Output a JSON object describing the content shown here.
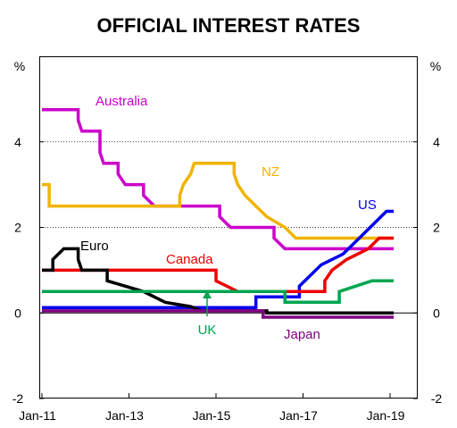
{
  "chart_data": {
    "type": "line",
    "title": "OFFICIAL INTEREST RATES",
    "ylabel_left": "%",
    "ylabel_right": "%",
    "ylim": [
      -2,
      6
    ],
    "xlim": [
      "2011-01",
      "2019-03"
    ],
    "y_ticks": [
      -2,
      0,
      2,
      4
    ],
    "y_tick_labels": [
      "-2",
      "0",
      "2",
      "4"
    ],
    "x_ticks": [
      "2011-01",
      "2013-01",
      "2015-01",
      "2017-01",
      "2019-01"
    ],
    "x_tick_labels": [
      "Jan-11",
      "Jan-13",
      "Jan-15",
      "Jan-17",
      "Jan-19"
    ],
    "gridlines": [
      2,
      4
    ],
    "grid": "dotted horizontal at 2 and 4",
    "series": [
      {
        "name": "Australia",
        "color": "#cc00cc",
        "points": [
          [
            "2011-01",
            4.75
          ],
          [
            "2011-11",
            4.75
          ],
          [
            "2011-11",
            4.5
          ],
          [
            "2011-12",
            4.25
          ],
          [
            "2012-05",
            4.25
          ],
          [
            "2012-05",
            3.75
          ],
          [
            "2012-06",
            3.5
          ],
          [
            "2012-10",
            3.5
          ],
          [
            "2012-10",
            3.25
          ],
          [
            "2012-12",
            3.0
          ],
          [
            "2013-05",
            3.0
          ],
          [
            "2013-05",
            2.75
          ],
          [
            "2013-08",
            2.5
          ],
          [
            "2015-02",
            2.5
          ],
          [
            "2015-02",
            2.25
          ],
          [
            "2015-05",
            2.0
          ],
          [
            "2016-05",
            2.0
          ],
          [
            "2016-05",
            1.75
          ],
          [
            "2016-08",
            1.5
          ],
          [
            "2019-02",
            1.5
          ]
        ]
      },
      {
        "name": "NZ",
        "color": "#f0b400",
        "points": [
          [
            "2011-01",
            3.0
          ],
          [
            "2011-03",
            3.0
          ],
          [
            "2011-03",
            2.5
          ],
          [
            "2014-03",
            2.5
          ],
          [
            "2014-03",
            2.75
          ],
          [
            "2014-04",
            3.0
          ],
          [
            "2014-06",
            3.25
          ],
          [
            "2014-07",
            3.5
          ],
          [
            "2015-06",
            3.5
          ],
          [
            "2015-06",
            3.25
          ],
          [
            "2015-07",
            3.0
          ],
          [
            "2015-09",
            2.75
          ],
          [
            "2015-12",
            2.5
          ],
          [
            "2016-03",
            2.25
          ],
          [
            "2016-08",
            2.0
          ],
          [
            "2016-11",
            1.75
          ],
          [
            "2019-02",
            1.75
          ]
        ]
      },
      {
        "name": "US",
        "color": "#0000ee",
        "points": [
          [
            "2011-01",
            0.125
          ],
          [
            "2015-12",
            0.125
          ],
          [
            "2015-12",
            0.375
          ],
          [
            "2016-12",
            0.375
          ],
          [
            "2016-12",
            0.625
          ],
          [
            "2017-03",
            0.875
          ],
          [
            "2017-06",
            1.125
          ],
          [
            "2017-12",
            1.375
          ],
          [
            "2018-03",
            1.625
          ],
          [
            "2018-06",
            1.875
          ],
          [
            "2018-09",
            2.125
          ],
          [
            "2018-12",
            2.375
          ],
          [
            "2019-02",
            2.375
          ]
        ]
      },
      {
        "name": "Canada",
        "color": "#ee0000",
        "points": [
          [
            "2011-01",
            1.0
          ],
          [
            "2015-01",
            1.0
          ],
          [
            "2015-01",
            0.75
          ],
          [
            "2015-07",
            0.5
          ],
          [
            "2017-07",
            0.5
          ],
          [
            "2017-07",
            0.75
          ],
          [
            "2017-09",
            1.0
          ],
          [
            "2018-01",
            1.25
          ],
          [
            "2018-07",
            1.5
          ],
          [
            "2018-10",
            1.75
          ],
          [
            "2019-02",
            1.75
          ]
        ]
      },
      {
        "name": "Euro",
        "color": "#000000",
        "points": [
          [
            "2011-01",
            1.0
          ],
          [
            "2011-04",
            1.0
          ],
          [
            "2011-04",
            1.25
          ],
          [
            "2011-07",
            1.5
          ],
          [
            "2011-11",
            1.5
          ],
          [
            "2011-11",
            1.25
          ],
          [
            "2011-12",
            1.0
          ],
          [
            "2012-07",
            1.0
          ],
          [
            "2012-07",
            0.75
          ],
          [
            "2013-05",
            0.5
          ],
          [
            "2013-11",
            0.25
          ],
          [
            "2014-06",
            0.15
          ],
          [
            "2014-09",
            0.05
          ],
          [
            "2016-03",
            0.05
          ],
          [
            "2016-03",
            0.0
          ],
          [
            "2019-02",
            0.0
          ]
        ]
      },
      {
        "name": "UK",
        "color": "#00a550",
        "points": [
          [
            "2011-01",
            0.5
          ],
          [
            "2016-08",
            0.5
          ],
          [
            "2016-08",
            0.25
          ],
          [
            "2017-11",
            0.25
          ],
          [
            "2017-11",
            0.5
          ],
          [
            "2018-08",
            0.75
          ],
          [
            "2019-02",
            0.75
          ]
        ]
      },
      {
        "name": "Japan",
        "color": "#800080",
        "points": [
          [
            "2011-01",
            0.05
          ],
          [
            "2016-02",
            0.05
          ],
          [
            "2016-02",
            -0.1
          ],
          [
            "2019-02",
            -0.1
          ]
        ]
      }
    ],
    "annotations": [
      "UK arrow pointing up to the UK line"
    ]
  }
}
